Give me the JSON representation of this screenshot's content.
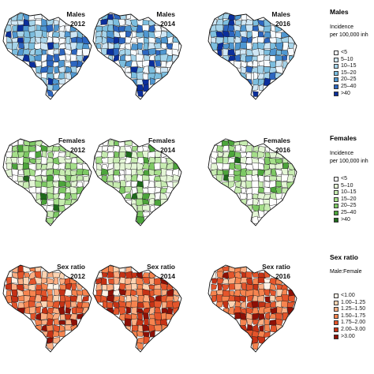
{
  "rows": [
    {
      "group": "Males",
      "panels": [
        {
          "group_label": "Males",
          "year": "2012",
          "fill_mix": [
            0.25,
            0.15,
            0.15,
            0.15,
            0.12,
            0.1,
            0.08
          ]
        },
        {
          "group_label": "Males",
          "year": "2014",
          "fill_mix": [
            0.2,
            0.15,
            0.15,
            0.15,
            0.13,
            0.12,
            0.1
          ]
        },
        {
          "group_label": "Males",
          "year": "2016",
          "fill_mix": [
            0.22,
            0.16,
            0.16,
            0.16,
            0.12,
            0.1,
            0.08
          ]
        }
      ]
    },
    {
      "group": "Females",
      "panels": [
        {
          "group_label": "Females",
          "year": "2012",
          "fill_mix": [
            0.3,
            0.2,
            0.18,
            0.15,
            0.1,
            0.05,
            0.02
          ]
        },
        {
          "group_label": "Females",
          "year": "2014",
          "fill_mix": [
            0.3,
            0.22,
            0.18,
            0.14,
            0.09,
            0.05,
            0.02
          ]
        },
        {
          "group_label": "Females",
          "year": "2016",
          "fill_mix": [
            0.3,
            0.22,
            0.2,
            0.14,
            0.08,
            0.04,
            0.02
          ]
        }
      ]
    },
    {
      "group": "Sex ratio",
      "panels": [
        {
          "group_label": "Sex ratio",
          "year": "2012",
          "fill_mix": [
            0.05,
            0.15,
            0.25,
            0.25,
            0.15,
            0.1,
            0.05
          ]
        },
        {
          "group_label": "Sex ratio",
          "year": "2014",
          "fill_mix": [
            0.02,
            0.08,
            0.15,
            0.25,
            0.25,
            0.15,
            0.1
          ]
        },
        {
          "group_label": "Sex ratio",
          "year": "2016",
          "fill_mix": [
            0.02,
            0.08,
            0.15,
            0.25,
            0.25,
            0.15,
            0.1
          ]
        }
      ]
    }
  ],
  "legends": [
    {
      "title": "Males",
      "subtitle_lines": [
        "Incidence",
        "per 100,000 inh"
      ],
      "items": [
        {
          "label": "<5",
          "color": "#f7fbff"
        },
        {
          "label": "5–10",
          "color": "#d0e7f5"
        },
        {
          "label": "10–15",
          "color": "#a6d4ea"
        },
        {
          "label": "15–20",
          "color": "#7cbedf"
        },
        {
          "label": "20–25",
          "color": "#4f97d1"
        },
        {
          "label": "25–40",
          "color": "#2c66c0"
        },
        {
          "label": ">40",
          "color": "#0b2f9c"
        }
      ]
    },
    {
      "title": "Females",
      "subtitle_lines": [
        "Incidence",
        "per 100,000 inh"
      ],
      "items": [
        {
          "label": "<5",
          "color": "#ffffff"
        },
        {
          "label": "5–10",
          "color": "#e4f6d6"
        },
        {
          "label": "10–15",
          "color": "#c7ecb1"
        },
        {
          "label": "15–20",
          "color": "#a5df8a"
        },
        {
          "label": "20–25",
          "color": "#7dc964"
        },
        {
          "label": "25–40",
          "color": "#4ca53b"
        },
        {
          "label": ">40",
          "color": "#1f6a1c"
        }
      ]
    },
    {
      "title": "Sex ratio",
      "subtitle_lines": [
        "Male:Female"
      ],
      "items": [
        {
          "label": "<1.00",
          "color": "#fff3e8"
        },
        {
          "label": "1.00–1.25",
          "color": "#fdd4b3"
        },
        {
          "label": "1.25–1.50",
          "color": "#fbae83"
        },
        {
          "label": "1.50–1.75",
          "color": "#f6844f"
        },
        {
          "label": "1.75–2.00",
          "color": "#e4552b"
        },
        {
          "label": "2.00–3.00",
          "color": "#c63215"
        },
        {
          "label": ">3.00",
          "color": "#8e1006"
        }
      ]
    }
  ]
}
